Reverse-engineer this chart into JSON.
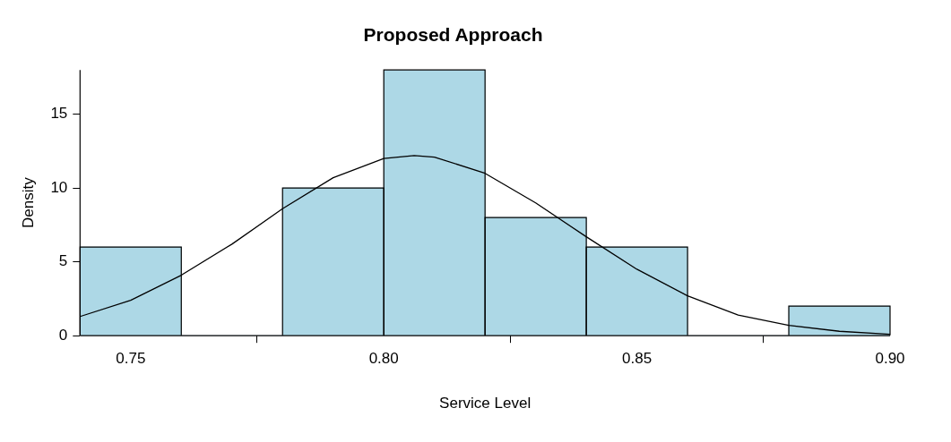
{
  "chart_data": {
    "type": "histogram",
    "title": "Proposed Approach",
    "xlabel": "Service Level",
    "ylabel": "Density",
    "bins": [
      0.74,
      0.76,
      0.78,
      0.8,
      0.82,
      0.84,
      0.86,
      0.88,
      0.9
    ],
    "values": [
      6,
      0,
      10,
      18,
      8,
      6,
      0,
      2
    ],
    "color": "#add8e6",
    "series": [
      {
        "type": "line",
        "color": "#000000",
        "marker": "none",
        "x": [
          0.74,
          0.75,
          0.76,
          0.77,
          0.78,
          0.79,
          0.8,
          0.806,
          0.81,
          0.82,
          0.83,
          0.84,
          0.85,
          0.86,
          0.87,
          0.88,
          0.89,
          0.9
        ],
        "values": [
          1.3,
          2.4,
          4.1,
          6.2,
          8.6,
          10.7,
          12.0,
          12.2,
          12.1,
          11.0,
          9.0,
          6.7,
          4.5,
          2.7,
          1.4,
          0.7,
          0.3,
          0.1
        ]
      }
    ],
    "xlim": [
      0.74,
      0.9
    ],
    "xticks": [
      {
        "value": 0.75,
        "label": "0.75"
      },
      {
        "value": 0.8,
        "label": "0.80"
      },
      {
        "value": 0.85,
        "label": "0.85"
      },
      {
        "value": 0.9,
        "label": "0.90"
      }
    ],
    "ylim": [
      0,
      18
    ],
    "yticks": [
      0,
      5,
      10,
      15
    ],
    "grid": false,
    "legend": false
  }
}
